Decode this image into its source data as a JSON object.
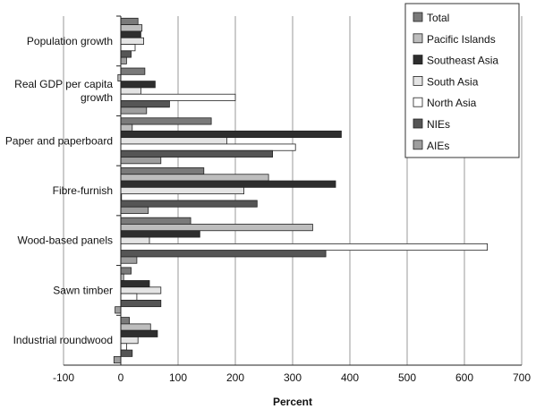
{
  "chart_data": {
    "type": "bar",
    "orientation": "horizontal",
    "xlabel": "Percent",
    "xlim": [
      -100,
      700
    ],
    "xticks": [
      "-100",
      "0",
      "100",
      "200",
      "300",
      "400",
      "500",
      "600",
      "700"
    ],
    "grid": true,
    "legend_position": "top-right",
    "categories": [
      [
        "Population growth"
      ],
      [
        "Real GDP per capita",
        "growth"
      ],
      [
        "Paper and paperboard"
      ],
      [
        "Fibre-furnish"
      ],
      [
        "Wood-based panels"
      ],
      [
        "Sawn timber"
      ],
      [
        "Industrial roundwood"
      ]
    ],
    "series": [
      {
        "name": "Total",
        "color": "#7a7a7a",
        "values": [
          30,
          42,
          158,
          145,
          122,
          18,
          15
        ]
      },
      {
        "name": "Pacific Islands",
        "color": "#bdbdbd",
        "values": [
          37,
          -5,
          20,
          258,
          335,
          5,
          52
        ]
      },
      {
        "name": "Southeast Asia",
        "color": "#2e2e2e",
        "values": [
          35,
          60,
          385,
          375,
          138,
          50,
          64
        ]
      },
      {
        "name": "South Asia",
        "color": "#e4e4e4",
        "values": [
          40,
          35,
          185,
          215,
          50,
          70,
          30
        ]
      },
      {
        "name": "North Asia",
        "color": "#ffffff",
        "values": [
          25,
          200,
          305,
          0,
          640,
          28,
          10
        ]
      },
      {
        "name": "NIEs",
        "color": "#555555",
        "values": [
          18,
          85,
          265,
          238,
          358,
          70,
          20
        ]
      },
      {
        "name": "AIEs",
        "color": "#9e9e9e",
        "values": [
          10,
          45,
          70,
          48,
          28,
          -10,
          -12
        ]
      }
    ]
  }
}
